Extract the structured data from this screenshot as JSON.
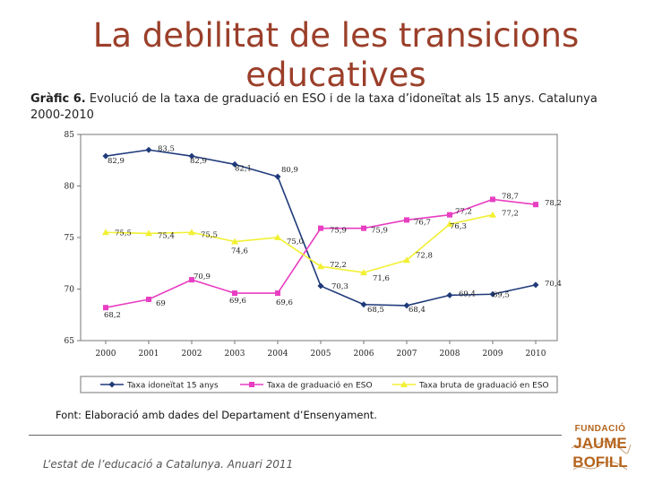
{
  "page": {
    "title": "La debilitat de les transicions educatives",
    "subtitle_prefix": "Gràfic 6.",
    "subtitle": "Evolució de la taxa de graduació en ESO i de la taxa d’idoneïtat als 15 anys. Catalunya 2000-2010",
    "source": "Font: Elaboració amb dades del Departament d’Ensenyament.",
    "footer": "L’estat de l’educació a Catalunya. Anuari 2011",
    "logo": {
      "line1": "FUNDACIÓ",
      "line2": "JAUME",
      "line3": "BOFILL",
      "color": "#b5641d"
    }
  },
  "chart_data": {
    "type": "line",
    "x": [
      "2000",
      "2001",
      "2002",
      "2003",
      "2004",
      "2005",
      "2006",
      "2007",
      "2008",
      "2009",
      "2010"
    ],
    "ylim": [
      65,
      85
    ],
    "yticks": [
      "65",
      "70",
      "75",
      "80",
      "85"
    ],
    "grid": false,
    "legend_position": "bottom",
    "series": [
      {
        "name": "Taxa idoneïtat 15 anys",
        "color": "#1f3a7a",
        "marker": "diamond",
        "values": [
          82.9,
          83.5,
          82.9,
          82.1,
          80.9,
          70.3,
          68.5,
          68.4,
          69.4,
          69.5,
          70.4
        ],
        "labels": [
          "82,9",
          "83,5",
          "82,9",
          "82,1",
          "80,9",
          "70,3",
          "68,5",
          "68,4",
          "69,4",
          "69,5",
          "70,4"
        ]
      },
      {
        "name": "Taxa de graduació en ESO",
        "color": "#e83ec2",
        "marker": "square",
        "values": [
          68.2,
          69.0,
          70.9,
          69.6,
          69.6,
          75.9,
          75.9,
          76.7,
          77.2,
          78.7,
          78.2
        ],
        "labels": [
          "68,2",
          "69",
          "70,9",
          "69,6",
          "69,6",
          "75,9",
          "75,9",
          "76,7",
          "77,2",
          "78,7",
          "78,2"
        ]
      },
      {
        "name": "Taxa bruta de graduació en ESO",
        "color": "#f2f033",
        "marker": "triangle",
        "values": [
          75.5,
          75.4,
          75.5,
          74.6,
          75.0,
          72.2,
          71.6,
          72.8,
          76.3,
          77.2,
          null
        ],
        "labels": [
          "75,5",
          "75,4",
          "75,5",
          "74,6",
          "75,0",
          "72,2",
          "71,6",
          "72,8",
          "76,3",
          "77,2",
          ""
        ]
      }
    ]
  }
}
